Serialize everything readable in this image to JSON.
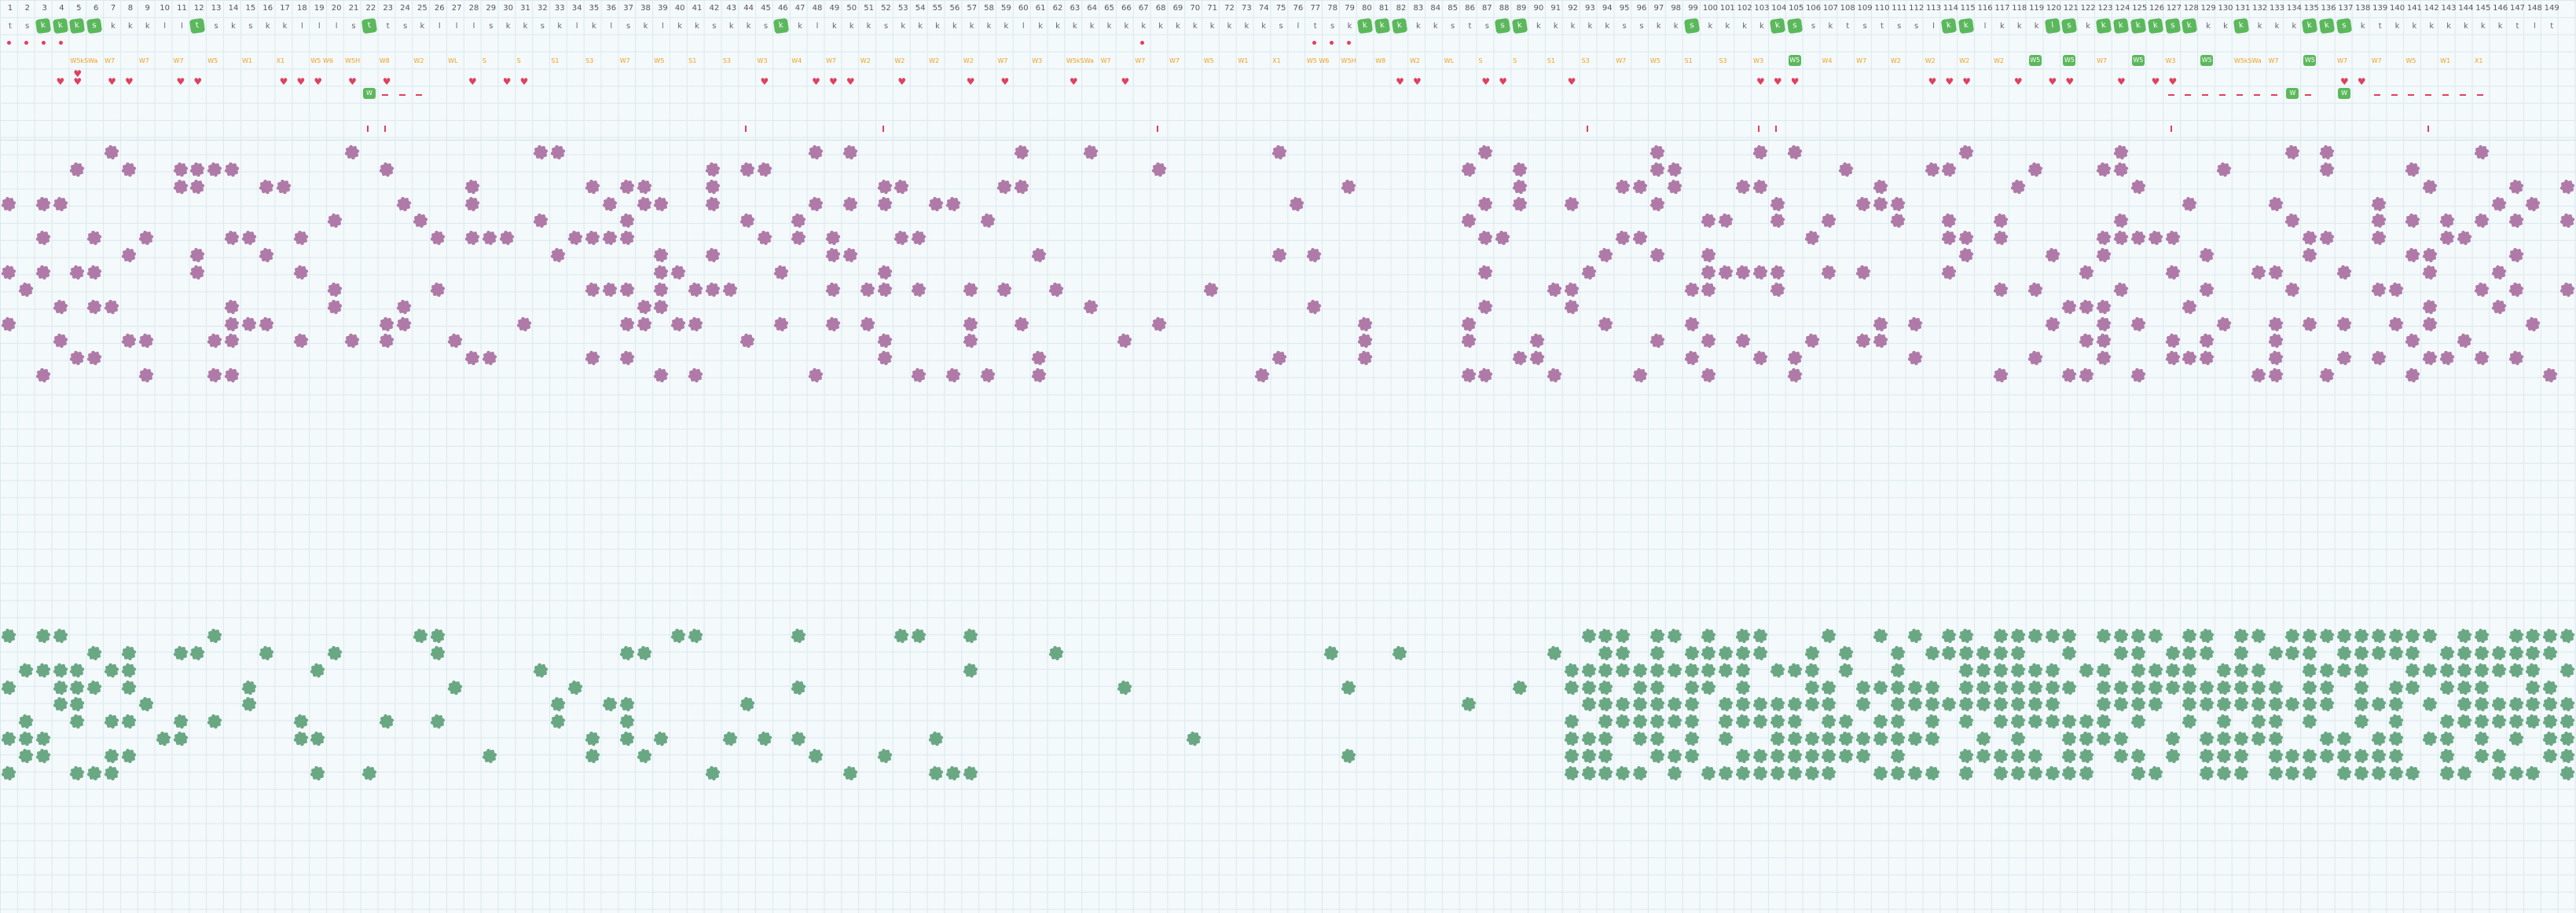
{
  "column_numbers": [
    "1",
    "2",
    "3",
    "4",
    "5",
    "6",
    "7",
    "8",
    "9",
    "10",
    "11",
    "12",
    "13",
    "14",
    "15",
    "16",
    "17",
    "18",
    "19",
    "20",
    "21",
    "22",
    "23",
    "24",
    "25",
    "26",
    "27",
    "28",
    "29",
    "30",
    "31",
    "32",
    "33",
    "34",
    "35",
    "36",
    "37",
    "38",
    "39",
    "40",
    "41",
    "42",
    "43",
    "44",
    "45",
    "46",
    "47",
    "48",
    "49",
    "50",
    "51",
    "52",
    "53",
    "54",
    "55",
    "56",
    "57",
    "58",
    "59",
    "60",
    "61",
    "62",
    "63",
    "64",
    "65",
    "66",
    "67",
    "68",
    "69",
    "70",
    "71",
    "72",
    "73",
    "74",
    "75",
    "76",
    "77",
    "78",
    "79",
    "80",
    "81",
    "82",
    "83",
    "84",
    "85",
    "86",
    "87",
    "88",
    "89",
    "90",
    "91",
    "92",
    "93",
    "94",
    "95",
    "96",
    "97",
    "98",
    "99",
    "100",
    "101",
    "102",
    "103",
    "104",
    "105",
    "106",
    "107",
    "108",
    "109",
    "110",
    "111",
    "112",
    "113",
    "114",
    "115",
    "116",
    "117",
    "118",
    "119",
    "120",
    "121",
    "122",
    "123",
    "124",
    "125",
    "126",
    "127",
    "128",
    "129",
    "130",
    "131",
    "132",
    "133",
    "134",
    "135",
    "136",
    "137",
    "138",
    "139",
    "140",
    "141",
    "142",
    "143",
    "144",
    "145",
    "146",
    "147",
    "148",
    "149"
  ],
  "letter_row": [
    "t",
    "s",
    "k",
    "k",
    "k",
    "s",
    "k",
    "k",
    "k",
    "l",
    "l",
    "t",
    "s",
    "k",
    "s",
    "k",
    "k",
    "l",
    "l",
    "l",
    "s",
    "t",
    "t",
    "s",
    "k",
    "l",
    "l",
    "l",
    "s",
    "k",
    "k",
    "s",
    "k",
    "l",
    "k",
    "l",
    "s",
    "k",
    "l",
    "k",
    "k",
    "s",
    "k",
    "k",
    "s",
    "k",
    "k",
    "l",
    "k",
    "k",
    "k",
    "s",
    "k",
    "k",
    "k",
    "k",
    "k",
    "k",
    "k",
    "l",
    "k",
    "k",
    "k",
    "k",
    "k",
    "k",
    "k",
    "k",
    "k",
    "k",
    "k",
    "k",
    "k",
    "k",
    "s",
    "l",
    "t",
    "s",
    "k",
    "k",
    "k",
    "k",
    "k",
    "k",
    "s",
    "t",
    "s",
    "s",
    "k",
    "k",
    "k",
    "k",
    "k",
    "k",
    "s",
    "s",
    "k",
    "k",
    "s",
    "k",
    "k",
    "k",
    "k",
    "k",
    "s",
    "s",
    "k",
    "t",
    "s",
    "t",
    "s",
    "s",
    "l",
    "k",
    "k",
    "l",
    "k",
    "k",
    "k",
    "l",
    "s",
    "k",
    "k",
    "k",
    "k",
    "k",
    "s",
    "k",
    "k",
    "k",
    "k",
    "k",
    "k",
    "k",
    "k",
    "k",
    "s",
    "k",
    "t",
    "k",
    "k",
    "k",
    "k",
    "k",
    "k",
    "k",
    "t",
    "l",
    "t"
  ],
  "status_tags_sample": [
    "W5kSWa",
    "W7",
    "W7",
    "W7",
    "W5",
    "W1",
    "X1",
    "W5 W6",
    "W5H",
    "W8",
    "W2",
    "WL",
    "S",
    "S",
    "S1",
    "S3",
    "W7",
    "W5",
    "S1",
    "S3",
    "W3",
    "W4",
    "W7",
    "W2",
    "W2",
    "W2",
    "W2",
    "W7",
    "W3"
  ],
  "icons": {
    "board_cell": "grid-cell",
    "purple_tile": "purple-tile-icon",
    "green_tile": "green-tile-icon",
    "heart": "heart-icon",
    "badge": "green-badge-icon"
  },
  "colors": {
    "background": "#f4f9fb",
    "gridline": "#dbe9ee",
    "purple_tile": "#b07aa8",
    "green_tile": "#6aa884",
    "badge_green": "#5cb85c",
    "heart_red": "#e0405f",
    "tag_orange": "#f0a020"
  }
}
